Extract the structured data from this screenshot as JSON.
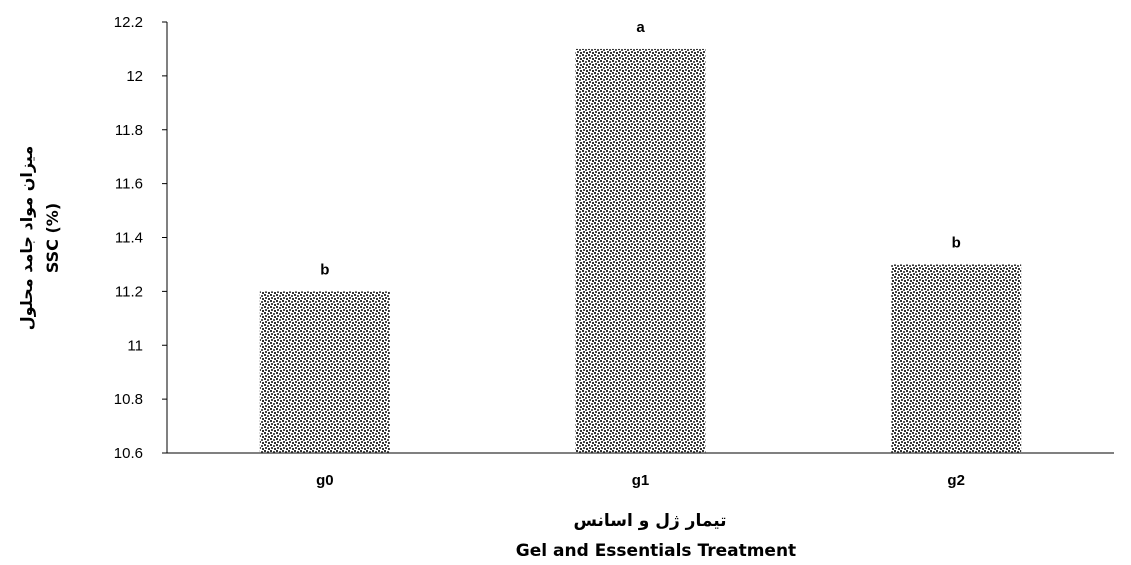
{
  "chart_data": {
    "type": "bar",
    "categories": [
      "g0",
      "g1",
      "g2"
    ],
    "values": [
      11.2,
      12.1,
      11.3
    ],
    "significance_letters": [
      "b",
      "a",
      "b"
    ],
    "xlabel_fa": "تیمار ژل و اسانس",
    "xlabel_en": "Gel and Essentials Treatment",
    "ylabel_fa": "میزان مواد جامد محلول",
    "ylabel_en": "SSC (%)",
    "ylim": [
      10.6,
      12.2
    ],
    "yticks": [
      "10.6",
      "10.8",
      "11",
      "11.2",
      "11.4",
      "11.6",
      "11.8",
      "12",
      "12.2"
    ],
    "grid": false,
    "bar_pattern": "dotted-gray"
  }
}
